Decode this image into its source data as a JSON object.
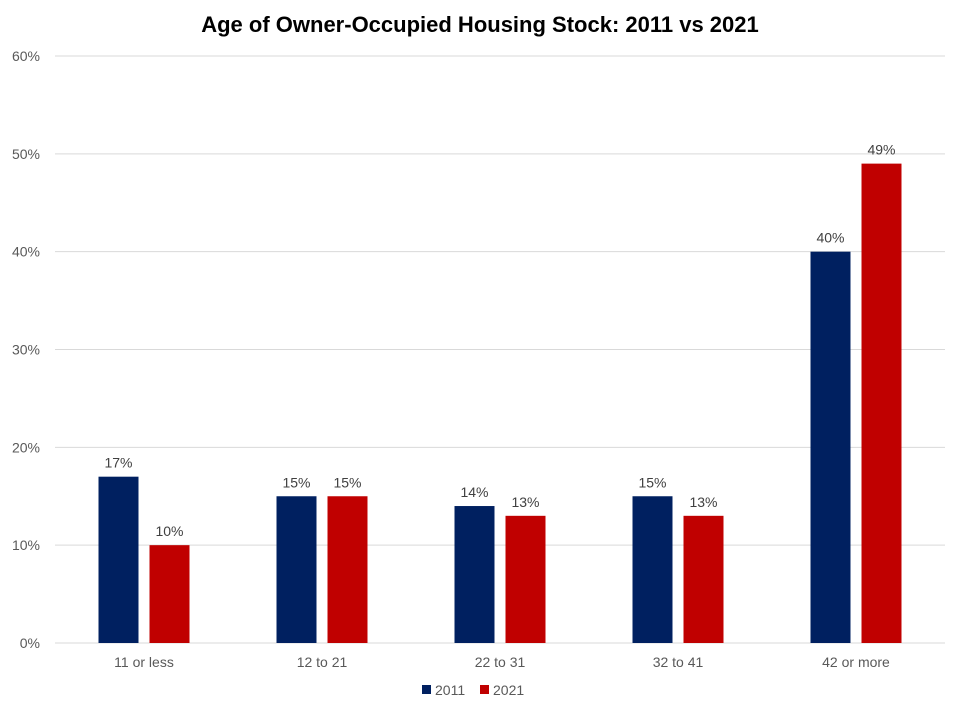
{
  "chart_data": {
    "type": "bar",
    "title": "Age of Owner-Occupied Housing Stock: 2011 vs 2021",
    "xlabel": "",
    "ylabel": "",
    "categories": [
      "11 or less",
      "12 to 21",
      "22 to 31",
      "32 to 41",
      "42 or more"
    ],
    "series": [
      {
        "name": "2011",
        "values": [
          17,
          15,
          14,
          15,
          40
        ],
        "color": "#002060"
      },
      {
        "name": "2021",
        "values": [
          10,
          15,
          13,
          13,
          49
        ],
        "color": "#C00000"
      }
    ],
    "ylim": [
      0,
      60
    ],
    "y_ticks": [
      0,
      10,
      20,
      30,
      40,
      50,
      60
    ],
    "y_tick_format": "percent",
    "data_labels": true,
    "grid": true,
    "legend": "bottom-center"
  }
}
